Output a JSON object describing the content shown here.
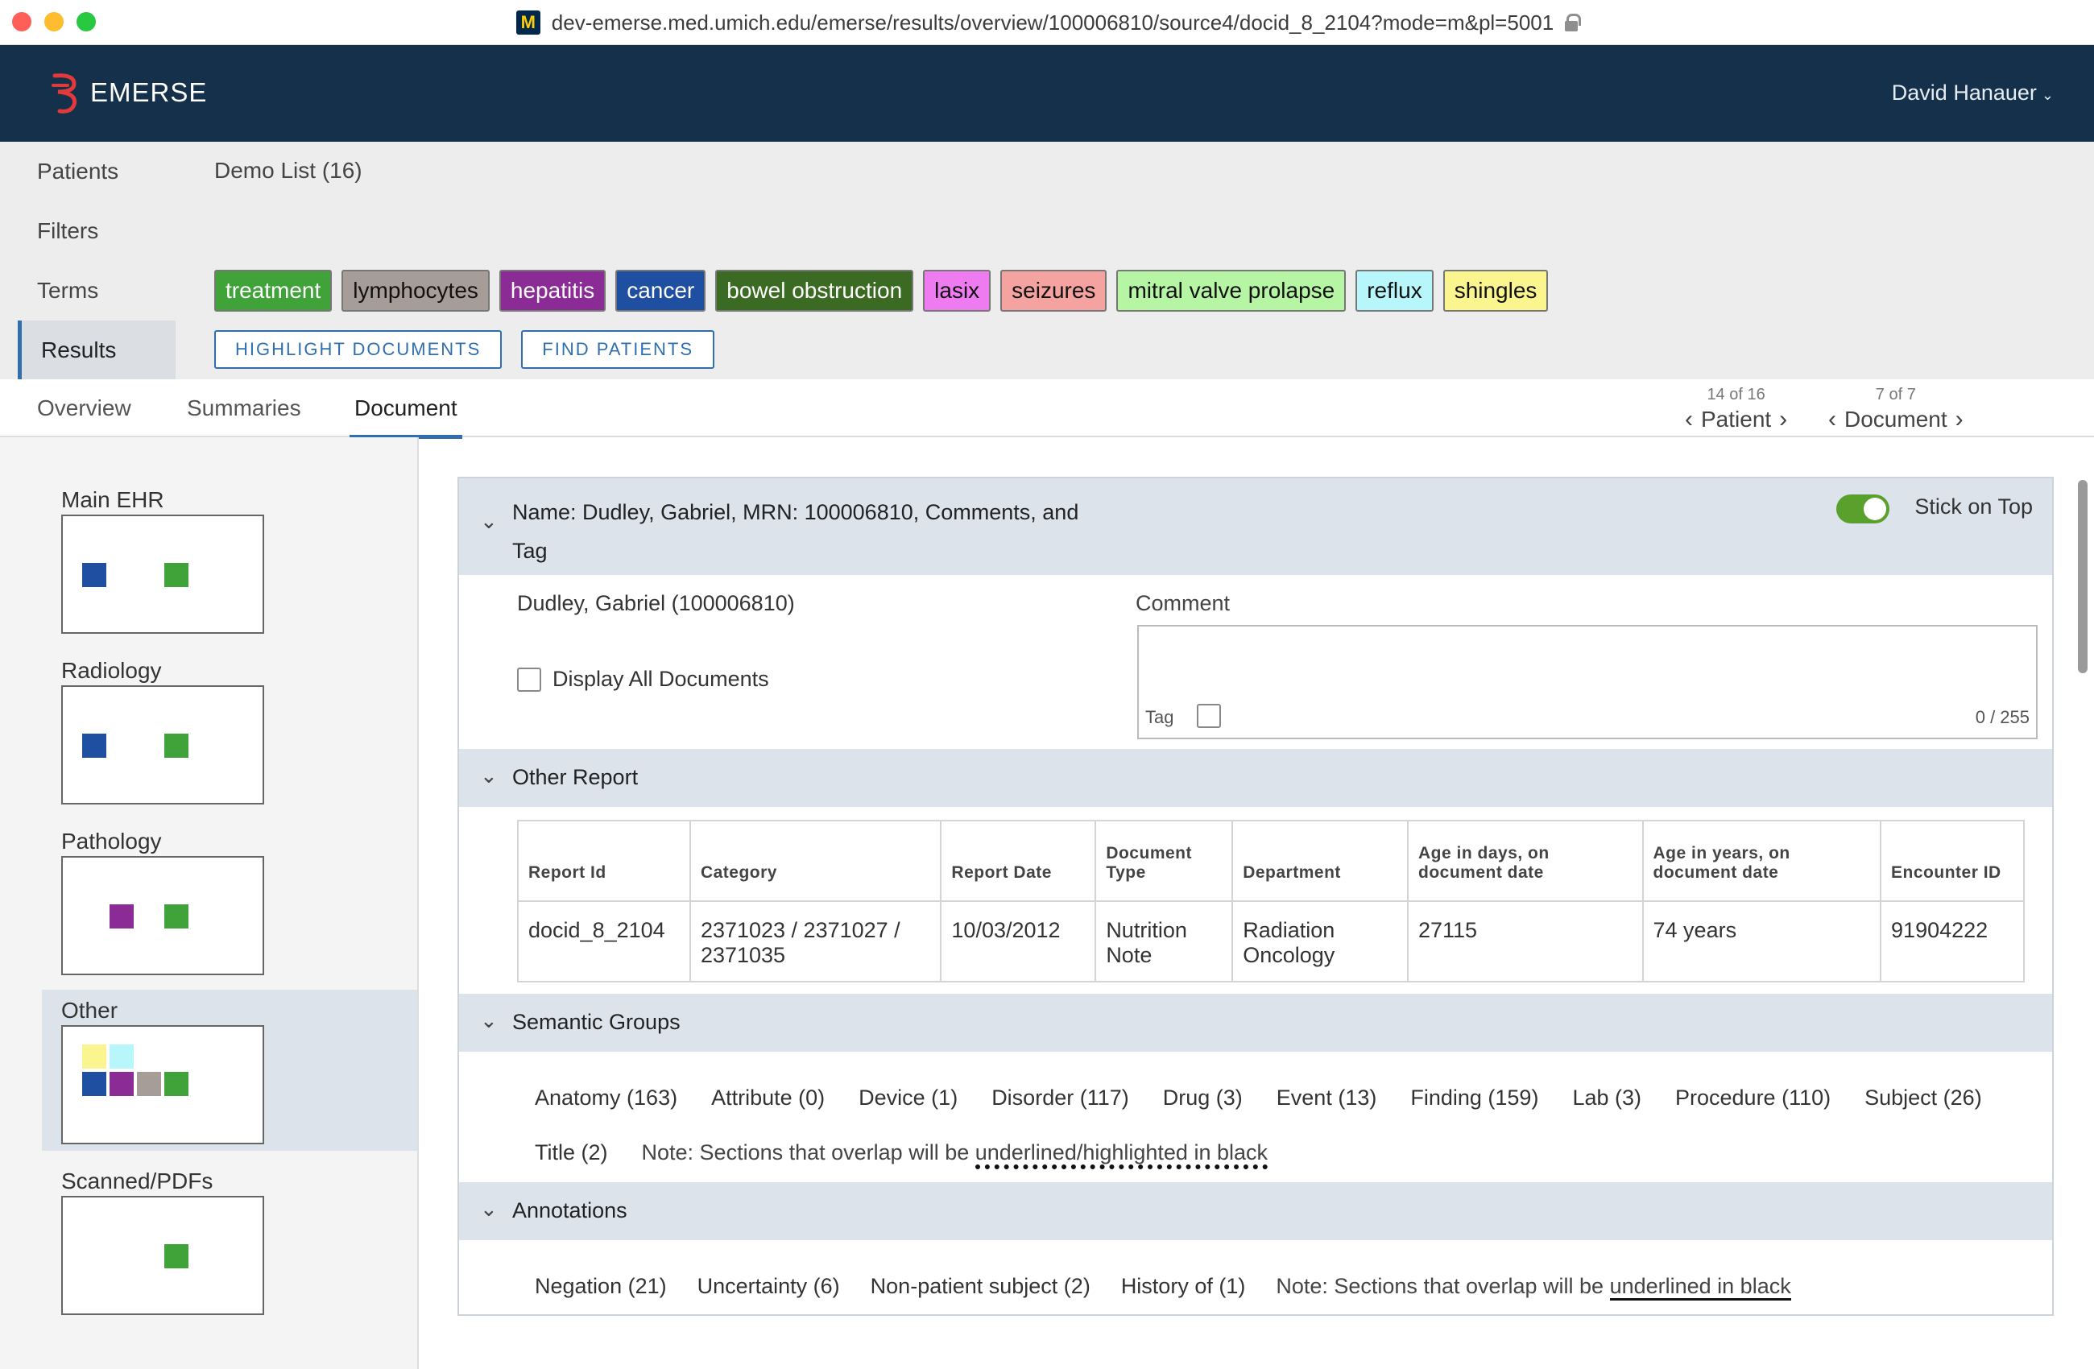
{
  "browser": {
    "url": "dev-emerse.med.umich.edu/emerse/results/overview/100006810/source4/docid_8_2104?mode=m&pl=5001",
    "favicon_letter": "M"
  },
  "app": {
    "name": "EMERSE",
    "user": "David Hanauer",
    "user_caret": "⌄"
  },
  "nav": {
    "items": [
      {
        "label": "Patients"
      },
      {
        "label": "Filters"
      },
      {
        "label": "Terms"
      },
      {
        "label": "Results"
      }
    ],
    "list_name": "Demo List (16)"
  },
  "terms": [
    {
      "label": "treatment",
      "bg": "#3fa33a",
      "fg": "#ffffff"
    },
    {
      "label": "lymphocytes",
      "bg": "#a79d98",
      "fg": "#111111"
    },
    {
      "label": "hepatitis",
      "bg": "#8b2b96",
      "fg": "#ffffff"
    },
    {
      "label": "cancer",
      "bg": "#1f4fa0",
      "fg": "#ffffff"
    },
    {
      "label": "bowel obstruction",
      "bg": "#3b6a22",
      "fg": "#ffffff"
    },
    {
      "label": "lasix",
      "bg": "#ee7cf0",
      "fg": "#111111"
    },
    {
      "label": "seizures",
      "bg": "#f4a3a0",
      "fg": "#111111"
    },
    {
      "label": "mitral valve prolapse",
      "bg": "#b6f5a4",
      "fg": "#111111"
    },
    {
      "label": "reflux",
      "bg": "#b7f6fb",
      "fg": "#111111"
    },
    {
      "label": "shingles",
      "bg": "#fbf58f",
      "fg": "#111111"
    }
  ],
  "actions": {
    "highlight": "HIGHLIGHT DOCUMENTS",
    "find": "FIND PATIENTS"
  },
  "tabs": [
    {
      "label": "Overview"
    },
    {
      "label": "Summaries"
    },
    {
      "label": "Document"
    }
  ],
  "pager": {
    "patient": {
      "count": "14 of 16",
      "label": "Patient"
    },
    "document": {
      "count": "7 of 7",
      "label": "Document"
    }
  },
  "sources": [
    {
      "label": "Main EHR",
      "colors": [
        "#1f4fa0",
        "#3fa33a"
      ]
    },
    {
      "label": "Radiology",
      "colors": [
        "#1f4fa0",
        "#3fa33a"
      ]
    },
    {
      "label": "Pathology",
      "colors": [
        "#8b2b96",
        "#3fa33a"
      ]
    },
    {
      "label": "Other",
      "colors": [
        "#fbf58f",
        "#b7f6fb",
        "#1f4fa0",
        "#8b2b96",
        "#a79d98",
        "#3fa33a"
      ]
    },
    {
      "label": "Scanned/PDFs",
      "colors": [
        "#3fa33a"
      ]
    }
  ],
  "patient_section": {
    "title_line1": "Name: Dudley, Gabriel, MRN: 100006810, Comments, and",
    "title_line2": "Tag",
    "stick_label": "Stick on Top",
    "patient": "Dudley, Gabriel (100006810)",
    "display_all": "Display All Documents",
    "comment_label": "Comment",
    "tag_label": "Tag",
    "counter": "0 / 255"
  },
  "report_section": {
    "title": "Other Report",
    "headers": [
      "Report Id",
      "Category",
      "Report Date",
      "Document Type",
      "Department",
      "Age in days, on document date",
      "Age in years, on document date",
      "Encounter ID"
    ],
    "row": [
      "docid_8_2104",
      "2371023 / 2371027 / 2371035",
      "10/03/2012",
      "Nutrition Note",
      "Radiation Oncology",
      "27115",
      "74 years",
      "91904222"
    ]
  },
  "semantic_section": {
    "title": "Semantic Groups",
    "row1": [
      "Anatomy (163)",
      "Attribute (0)",
      "Device (1)",
      "Disorder (117)",
      "Drug (3)",
      "Event (13)",
      "Finding (159)",
      "Lab (3)",
      "Procedure (110)",
      "Subject (26)"
    ],
    "row2": [
      "Title (2)"
    ],
    "note_prefix": "Note: Sections that overlap will be ",
    "note_emph": "underlined/highlighted in black"
  },
  "annotation_section": {
    "title": "Annotations",
    "items": [
      "Negation (21)",
      "Uncertainty (6)",
      "Non-patient subject (2)",
      "History of (1)"
    ],
    "note_prefix": "Note: Sections that overlap will be ",
    "note_emph": "underlined in black"
  },
  "chevron": "⌄"
}
